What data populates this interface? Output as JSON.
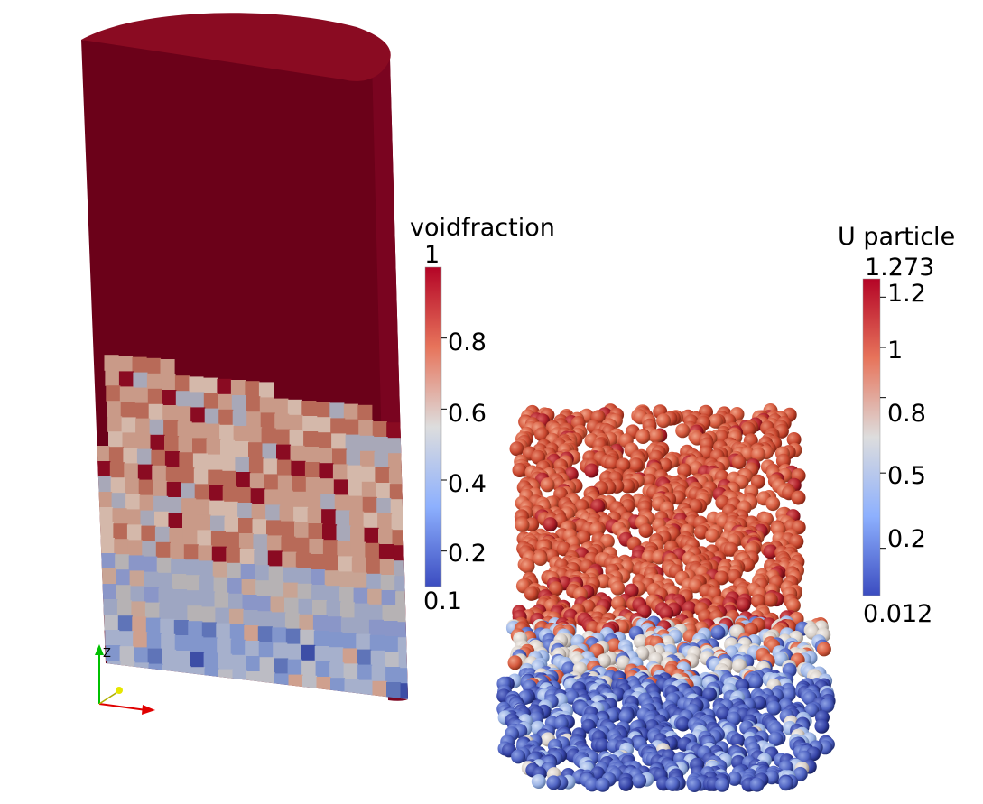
{
  "colors": {
    "background": "#ffffff",
    "high": "#b40426",
    "mid": "#dddddd",
    "low": "#3b4cc0",
    "column_top": "#8a0b22",
    "column_side": "#6b0119",
    "column_side_right": "#7a0420"
  },
  "void_legend": {
    "title": "voidfraction",
    "max_label": "1",
    "min_label": "0.1",
    "ticks": [
      "0.8",
      "0.6",
      "0.4",
      "0.2"
    ],
    "range": [
      0.1,
      1
    ],
    "tick_values": [
      0.8,
      0.6,
      0.4,
      0.2
    ]
  },
  "particle_legend": {
    "title": "U particle",
    "max_label": "1.273",
    "min_label": "0.012",
    "ticks": [
      "1.2",
      "1",
      "0.8",
      "0.5",
      "0.2"
    ],
    "range": [
      0.012,
      1.273
    ],
    "tick_values": [
      1.2,
      1.0,
      0.8,
      0.5,
      0.2
    ]
  },
  "axes_triad": {
    "z_label": "Z",
    "icon": "orientation-axes-icon"
  }
}
